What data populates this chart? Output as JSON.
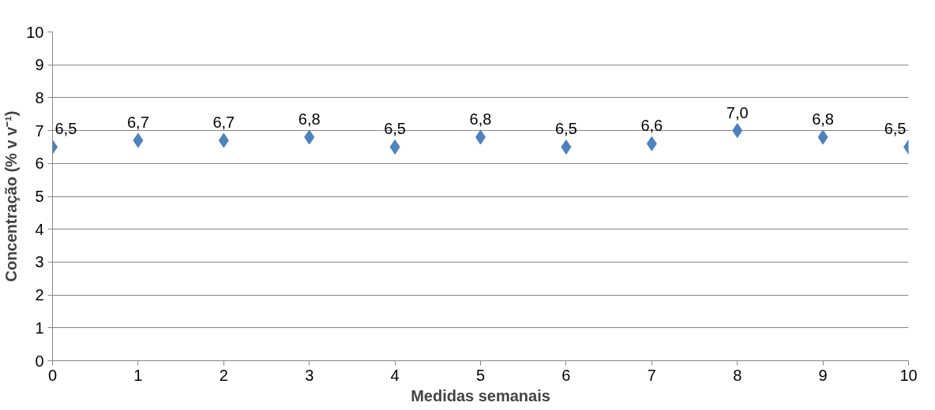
{
  "chart_data": {
    "type": "scatter",
    "xlabel": "Medidas semanais",
    "ylabel": "Concentração (% v v⁻¹)",
    "x": [
      0,
      1,
      2,
      3,
      4,
      5,
      6,
      7,
      8,
      9,
      10
    ],
    "values": [
      6.5,
      6.7,
      6.7,
      6.8,
      6.5,
      6.8,
      6.5,
      6.6,
      7.0,
      6.8,
      6.5
    ],
    "value_labels": [
      "6,5",
      "6,7",
      "6,7",
      "6,8",
      "6,5",
      "6,8",
      "6,5",
      "6,6",
      "7,0",
      "6,8",
      "6,5"
    ],
    "color": "#4f81bd",
    "marker": "diamond",
    "xlim": [
      0,
      10
    ],
    "xticks": [
      0,
      1,
      2,
      3,
      4,
      5,
      6,
      7,
      8,
      9,
      10
    ],
    "ylim": [
      0,
      10
    ],
    "yticks": [
      0,
      1,
      2,
      3,
      4,
      5,
      6,
      7,
      8,
      9,
      10
    ],
    "grid": "y"
  }
}
